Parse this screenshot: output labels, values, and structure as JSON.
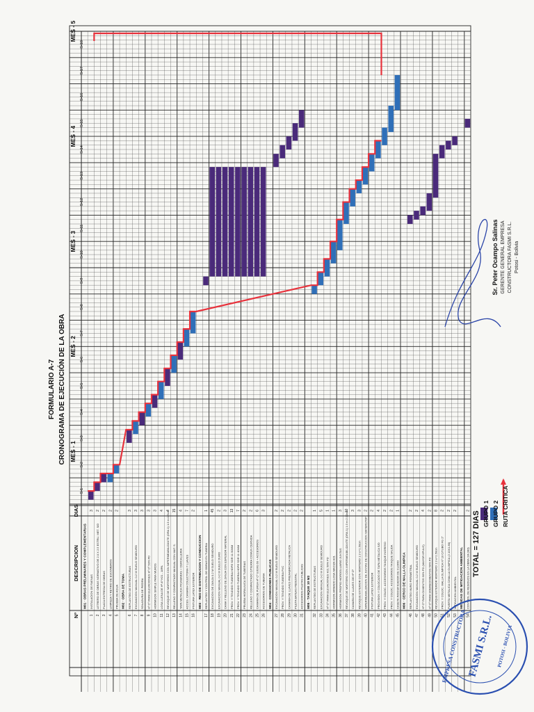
{
  "form": {
    "number": "FORMULARIO A-7",
    "title": "CRONOGRAMA DE EJECUCIÓN DE LA OBRA"
  },
  "columns": {
    "no": "Nº",
    "description": "DESCRIPCION",
    "days": "DIAS"
  },
  "months": [
    "MES - 1",
    "MES - 2",
    "MES - 3",
    "MES - 4",
    "MES - 5"
  ],
  "weeks": [
    "S-1",
    "S-2",
    "S-3",
    "S-4",
    "S-5",
    "S-6",
    "S-7",
    "S-8",
    "S-9",
    "S-10",
    "S-11",
    "S-12",
    "S-13",
    "S-14",
    "S-15",
    "S-16",
    "S-17",
    "S-18"
  ],
  "rows": [
    {
      "n": "",
      "d": "M01 · OBRAS PRELIMINARES Y COMPLEMENTARIAS",
      "days": "",
      "s": null,
      "e": null,
      "g": 0,
      "h": true
    },
    {
      "n": "1",
      "d": "INSTALACION DE FAENAS",
      "days": "3",
      "s": 1,
      "e": 3,
      "g": 1
    },
    {
      "n": "2",
      "d": "LETRERO DE OBRAS NORMATIVO DE 2.0 X 2.5 ESTRU. MET. S/D",
      "days": "2",
      "s": 3,
      "e": 5,
      "g": 1
    },
    {
      "n": "3",
      "d": "PLACA ENTREGA DE OBRAS",
      "days": "2",
      "s": 5,
      "e": 7,
      "g": 1
    },
    {
      "n": "4",
      "d": "LIMPIEZA Y RETIRO DE ESCOMBROS",
      "days": "2",
      "s": 5,
      "e": 7,
      "g": 2
    },
    {
      "n": "5",
      "d": "PRUEBA DE AGUA",
      "days": "2",
      "s": 7,
      "e": 9,
      "g": 2
    },
    {
      "n": "",
      "d": "M02 · OBRA DE TOMA",
      "days": "",
      "s": null,
      "e": null,
      "g": 0,
      "h": true
    },
    {
      "n": "6",
      "d": "REPLANTEO DE ESTRUCTURAS",
      "days": "3",
      "s": 14,
      "e": 17,
      "g": 1
    },
    {
      "n": "7",
      "d": "EXCAVACION MANUAL 0-2 M SUELO SEMIDURO",
      "days": "3",
      "s": 16,
      "e": 19,
      "g": 2
    },
    {
      "n": "8",
      "d": "SOLADURA DE PIEDRA",
      "days": "3",
      "s": 18,
      "e": 21,
      "g": 1
    },
    {
      "n": "9",
      "d": "Hº Cº PARA ELEVACIONES Hº Cº 50% PD",
      "days": "3",
      "s": 20,
      "e": 23,
      "g": 2
    },
    {
      "n": "10",
      "d": "HORMIGON SIMPLE PARA MUROS",
      "days": "3",
      "s": 22,
      "e": 25,
      "g": 1
    },
    {
      "n": "11",
      "d": "LOSA LLENA DE Hº Aº H21 - 18PA",
      "days": "4",
      "s": 24,
      "e": 28,
      "g": 2
    },
    {
      "n": "12",
      "d": "REVOQUE DE MORTEROS CON IMPERMEABILIZANTE (DRA 1) 1:3 e=1.5cm",
      "days": "4",
      "s": 27,
      "e": 31,
      "g": 1
    },
    {
      "n": "13",
      "d": "RELLENO Y COMPACTADO MANUAL CON MAT. S.",
      "days": "15",
      "s": 30,
      "e": 34,
      "g": 2
    },
    {
      "n": "14",
      "d": "TAPA METALICA P/CAMARAS + CERCALLERIA",
      "days": "4",
      "s": 33,
      "e": 37,
      "g": 1
    },
    {
      "n": "15",
      "d": "ACCES. CAMARA COLECTORA Y LLAVES",
      "days": "7",
      "s": 36,
      "e": 40,
      "g": 2
    },
    {
      "n": "16",
      "d": "PINTURA LATEX EXTERIOR",
      "days": "2",
      "s": 39,
      "e": 44,
      "g": 2
    },
    {
      "n": "",
      "d": "M03 · RED DE DISTRIBUCION Y CONDUCCION",
      "days": "",
      "s": null,
      "e": null,
      "g": 0,
      "h": true
    },
    {
      "n": "17",
      "d": "REPLANTEO Y CONTROL DE OBRAS EN TUBERIA",
      "days": "1",
      "s": 50,
      "e": 52,
      "g": 1
    },
    {
      "n": "18",
      "d": "EXCAVACION DE ZANJA 0-2 M SUELO SEMIDURO",
      "days": "45",
      "s": 52,
      "e": 77,
      "g": 1
    },
    {
      "n": "19",
      "d": "EXCAVACION MANUAL 0-2 M SUELO DURO",
      "days": "2",
      "s": 52,
      "e": 77,
      "g": 1
    },
    {
      "n": "20",
      "d": "CAMA Y RELLENO DE ZANJA CON ESPESOR MATERIAL",
      "days": "3",
      "s": 52,
      "e": 77,
      "g": 1
    },
    {
      "n": "21",
      "d": "PROV. Y TENDIDO TUBERIA HDPE SDR 11 50MM",
      "days": "13",
      "s": 52,
      "e": 77,
      "g": 1
    },
    {
      "n": "22",
      "d": "PROV. Y TENDIDO TUBERIA HDPE SDR 11 40MM",
      "days": "7",
      "s": 52,
      "e": 77,
      "g": 1
    },
    {
      "n": "23",
      "d": "PRUEBA HIDRAULICA DE TUBERIAS",
      "days": "2",
      "s": 52,
      "e": 77,
      "g": 1
    },
    {
      "n": "24",
      "d": "RELLENO Y COMPACTADO C/TIERRA COMUN CERNIDA",
      "days": "2",
      "s": 52,
      "e": 77,
      "g": 1
    },
    {
      "n": "25",
      "d": "CAMARA DE PURGA Hº Cº 0.60X0.60 + ACCESORIOS",
      "days": "6",
      "s": 52,
      "e": 77,
      "g": 1
    },
    {
      "n": "26",
      "d": "ACCESORIOS DE TUBERIA",
      "days": "3",
      "s": 52,
      "e": 77,
      "g": 1
    },
    {
      "n": "",
      "d": "M04 · CONEXIONES PUBLICAS",
      "days": "",
      "s": null,
      "e": null,
      "g": 0,
      "h": true
    },
    {
      "n": "27",
      "d": "EXCAVACION MANUAL 0-2 M SUELO SEMIDURO",
      "days": "2",
      "s": 77,
      "e": 80,
      "g": 1
    },
    {
      "n": "28",
      "d": "PROV. Y TENDIDO TUBERIA PVC",
      "days": "2",
      "s": 79,
      "e": 82,
      "g": 1
    },
    {
      "n": "29",
      "d": "CAMARA DE LLAVES PREFABRICADA METALICA",
      "days": "2",
      "s": 81,
      "e": 84,
      "g": 1
    },
    {
      "n": "30",
      "d": "PILETA BATEAS PEDESTAL",
      "days": "2",
      "s": 83,
      "e": 87,
      "g": 1
    },
    {
      "n": "31",
      "d": "ACCESORIOS PILETAS PUBLICAS",
      "days": "2",
      "s": 86,
      "e": 90,
      "g": 1
    },
    {
      "n": "",
      "d": "M05 · TANQUE 10 M3",
      "days": "",
      "s": null,
      "e": null,
      "g": 0,
      "h": true
    },
    {
      "n": "32",
      "d": "REPLANTEO DE ESTRUCTURAS",
      "days": "1",
      "s": 48,
      "e": 50,
      "g": 2
    },
    {
      "n": "33",
      "d": "EXCAVACION MANUAL 0-2 M SUELO SEMIDURO",
      "days": "5",
      "s": 50,
      "e": 53,
      "g": 2
    },
    {
      "n": "34",
      "d": "Hº Cº PARA ELEVACIONES H21 50% PD",
      "days": "1",
      "s": 52,
      "e": 56,
      "g": 2
    },
    {
      "n": "35",
      "d": "HORMIGON ARMADO LOSA MACIZA H21",
      "days": "1",
      "s": 55,
      "e": 60,
      "g": 2
    },
    {
      "n": "36",
      "d": "HORMIGON PROPIO HIDROGLUARIO JUNTAS",
      "days": "3",
      "s": 58,
      "e": 65,
      "g": 2
    },
    {
      "n": "37",
      "d": "REVOQUE DE MORTERO CON IMPERMEABILIZANTE (DRA 1) 1:3 e=2.00cm",
      "days": "10",
      "s": 64,
      "e": 69,
      "g": 2
    },
    {
      "n": "38",
      "d": "CAMARA DE LLAVES DE Hº Cº",
      "days": "3",
      "s": 68,
      "e": 72,
      "g": 2
    },
    {
      "n": "39",
      "d": "REVOQUE EXTERIOR CON MORTERO 1:3 e=1.50cm",
      "days": "3",
      "s": 71,
      "e": 74,
      "g": 2
    },
    {
      "n": "40",
      "d": "IMPERMEABILIZACION DE JUNTAS DE CONSTRUCCION WATERSTOP",
      "days": "2",
      "s": 73,
      "e": 77,
      "g": 2
    },
    {
      "n": "41",
      "d": "PINTURA LATEX EXTERIOR",
      "days": "2",
      "s": 76,
      "e": 80,
      "g": 2
    },
    {
      "n": "42",
      "d": "PROVISION Y COLOCADO DE TAPA METALICA S/D",
      "days": "4",
      "s": 79,
      "e": 83,
      "g": 2
    },
    {
      "n": "43",
      "d": "PROV. Y COLOC. ACCESORIOS TANQUE INGRESO",
      "days": "2",
      "s": 82,
      "e": 86,
      "g": 2
    },
    {
      "n": "44",
      "d": "PROV. Y COLOC. ACCESORIOS TANQUE SALIDA",
      "days": "2",
      "s": 85,
      "e": 91,
      "g": 2
    },
    {
      "n": "45",
      "d": "CASETA P/DOSIFICADOR DE CLORO",
      "days": "1",
      "s": 90,
      "e": 98,
      "g": 2
    },
    {
      "n": "",
      "d": "M06 · CERCO DE MALLA OLIMPICA",
      "days": "",
      "s": null,
      "e": null,
      "g": 0,
      "h": true
    },
    {
      "n": "46",
      "d": "REPLANTEO MURO PERIMETRAL",
      "days": "2",
      "s": 64,
      "e": 66,
      "g": 1
    },
    {
      "n": "47",
      "d": "EXCAVACION MANUAL 0-2 M SUELO SEMIDURO",
      "days": "2",
      "s": 65,
      "e": 67,
      "g": 1
    },
    {
      "n": "48",
      "d": "Hº Cº PARA CIMIENTOS 50% PD (MAYOR 6PULG)",
      "days": "4",
      "s": 66,
      "e": 68,
      "g": 1
    },
    {
      "n": "49",
      "d": "Hº Cº PARA SOBRECIMIENTOS 50% PD",
      "days": "2",
      "s": 67,
      "e": 71,
      "g": 1
    },
    {
      "n": "50",
      "d": "REVOQUE EXTERIOR MORTERO 1:3 e=1.50cm",
      "days": "8",
      "s": 70,
      "e": 80,
      "g": 1
    },
    {
      "n": "51",
      "d": "PROV. Y COLOC. MALLA OLIMPICA Nº 10 C/TUBO FG 2\"",
      "days": "2",
      "s": 79,
      "e": 82,
      "g": 1
    },
    {
      "n": "52",
      "d": "PUERTA METALICA C/MALLA OLIMPICA (2.10X1.80)",
      "days": "2",
      "s": 81,
      "e": 83,
      "g": 1
    },
    {
      "n": "53",
      "d": "MITIGACION AMBIENTAL",
      "days": "2",
      "s": 82,
      "e": 84,
      "g": 1
    },
    {
      "n": "",
      "d": "MEDIDAS DE MITIGACION AMBIENTAL",
      "days": "",
      "s": null,
      "e": null,
      "g": 0,
      "h": true
    },
    {
      "n": "54",
      "d": "CONTROL DE RESIDUOS EN LA OBRA 1M (M3)",
      "days": "2",
      "s": 86,
      "e": 88,
      "g": 1
    }
  ],
  "critical_path_note": "RUTA CRITICA",
  "totals": {
    "label": "TOTAL =",
    "value": "127 DIAS"
  },
  "legend": [
    {
      "label": "GRUPO",
      "code": "1",
      "color": "#4a2a7a"
    },
    {
      "label": "GRUPO",
      "code": "2",
      "color": "#2f6fb8"
    },
    {
      "label": "RUTA CRITICA",
      "code": "",
      "color": "#e8323c"
    }
  ],
  "signature": {
    "name": "Sr. Peter Ocampo Salinas",
    "role": "GERENTE GENERAL EMPRESA",
    "company": "CONSTRUCTORA FASMI S.R.L.",
    "place": "Potosi - Bolivia"
  },
  "stamp": {
    "top": "EMPRESA CONSTRUCTORA",
    "center": "FASMI S.R.L.",
    "bottom": "POTOSI - BOLIVIA"
  }
}
